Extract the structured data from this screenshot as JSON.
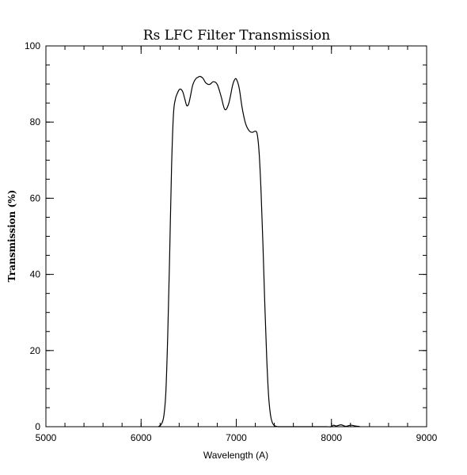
{
  "chart_data": {
    "type": "line",
    "title": "Rs LFC Filter Transmission",
    "xlabel": "Wavelength (A)",
    "ylabel": "Transmission (%)",
    "xlim": [
      5000,
      9000
    ],
    "ylim": [
      0,
      100
    ],
    "x_ticks": [
      5000,
      6000,
      7000,
      8000,
      9000
    ],
    "y_ticks": [
      0,
      20,
      40,
      60,
      80,
      100
    ],
    "x_minor_step": 200,
    "y_minor_step": 5,
    "grid": false,
    "series": [
      {
        "x": [
          6180,
          6200,
          6220,
          6240,
          6260,
          6280,
          6300,
          6320,
          6340,
          6360,
          6380,
          6400,
          6420,
          6440,
          6460,
          6480,
          6500,
          6520,
          6540,
          6560,
          6580,
          6600,
          6620,
          6650,
          6680,
          6720,
          6760,
          6800,
          6840,
          6880,
          6920,
          6960,
          6980,
          7000,
          7030,
          7060,
          7090,
          7110,
          7140,
          7170,
          7200,
          7220,
          7240,
          7260,
          7280,
          7300,
          7320,
          7340,
          7360,
          7380,
          7400,
          7420,
          7440,
          7460,
          7480,
          7500,
          7520,
          7540,
          7560,
          7580,
          7600,
          7620,
          7640,
          7660,
          7680,
          7700,
          7720,
          7750,
          7800,
          7850,
          7900,
          7950,
          8000,
          8020,
          8050,
          8100,
          8150,
          8200,
          8250,
          8280,
          8300
        ],
        "y": [
          0,
          0.3,
          1,
          3,
          9,
          24,
          45,
          68,
          82,
          86,
          87.5,
          88.5,
          88.6,
          87.8,
          86,
          84.3,
          84.8,
          87,
          89.5,
          90.8,
          91.5,
          91.8,
          92,
          91.5,
          90.3,
          89.9,
          90.6,
          89.9,
          86.8,
          83.3,
          84.8,
          89.5,
          91,
          91.3,
          89,
          84,
          80.3,
          78.8,
          77.6,
          77.3,
          77.6,
          76.8,
          72,
          62,
          48,
          32,
          18,
          8,
          3,
          1,
          0.3,
          0.1,
          0,
          0,
          0,
          0,
          0,
          0,
          0,
          0,
          0,
          0,
          0,
          0,
          0,
          0,
          0,
          0,
          0,
          0,
          0,
          0,
          0,
          0.4,
          0.2,
          0.5,
          0.1,
          0.4,
          0.2,
          0.1,
          0
        ]
      }
    ]
  }
}
